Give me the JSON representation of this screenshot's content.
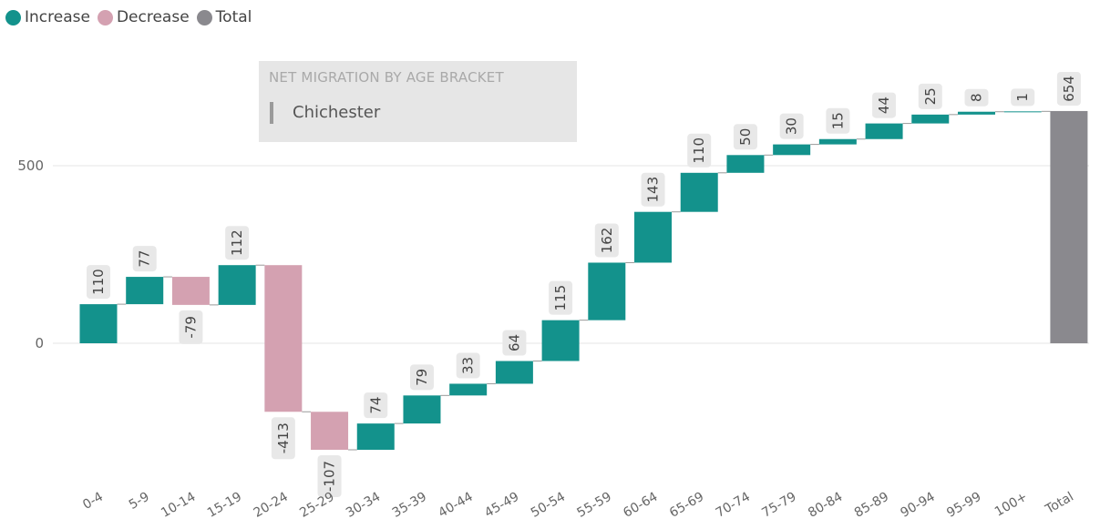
{
  "legend": {
    "items": [
      {
        "label": "Increase",
        "color": "#13928c"
      },
      {
        "label": "Decrease",
        "color": "#d4a1b1"
      },
      {
        "label": "Total",
        "color": "#8a898e"
      }
    ]
  },
  "filter_card": {
    "title": "NET MIGRATION BY AGE BRACKET",
    "value": "Chichester"
  },
  "chart_data": {
    "type": "waterfall",
    "title": "NET MIGRATION BY AGE BRACKET",
    "subtitle": "Chichester",
    "xlabel": "",
    "ylabel": "",
    "ylim": [
      -310,
      654
    ],
    "y_ticks": [
      0,
      500
    ],
    "grid": true,
    "legend_position": "top-left",
    "colors": {
      "increase": "#13928c",
      "decrease": "#d4a1b1",
      "total": "#8a898e"
    },
    "categories": [
      "0-4",
      "5-9",
      "10-14",
      "15-19",
      "20-24",
      "25-29",
      "30-34",
      "35-39",
      "40-44",
      "45-49",
      "50-54",
      "55-59",
      "60-64",
      "65-69",
      "70-74",
      "75-79",
      "80-84",
      "85-89",
      "90-94",
      "95-99",
      "100+",
      "Total"
    ],
    "values": [
      110,
      77,
      -79,
      112,
      -413,
      -107,
      74,
      79,
      33,
      64,
      115,
      162,
      143,
      110,
      50,
      30,
      15,
      44,
      25,
      8,
      1,
      654
    ],
    "labels": [
      "110",
      "77",
      "-79",
      "112",
      "-413",
      "-107",
      "74",
      "79",
      "33",
      "64",
      "115",
      "162",
      "143",
      "110",
      "50",
      "30",
      "15",
      "44",
      "25",
      "8",
      "1",
      "654"
    ]
  }
}
